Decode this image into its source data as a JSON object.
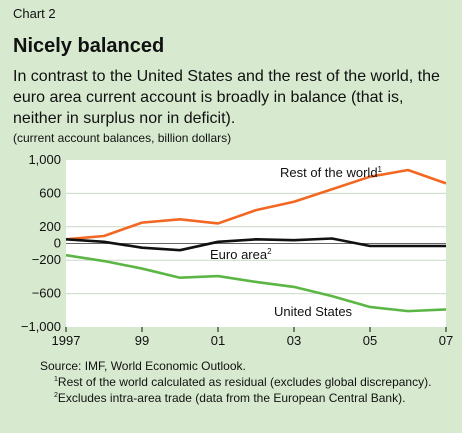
{
  "header": {
    "chart_number": "Chart 2",
    "title": "Nicely balanced",
    "description": "In contrast to the United States and the rest of the world, the euro area current account is broadly in balance (that is, neither in surplus nor in deficit).",
    "units": "(current account balances, billion dollars)"
  },
  "colors": {
    "background": "#d7ead0",
    "plot_background": "#ffffff",
    "rest_of_world": "#f26722",
    "euro_area": "#111111",
    "united_states": "#5cb646"
  },
  "chart_data": {
    "type": "line",
    "x": [
      1997,
      1998,
      1999,
      2000,
      2001,
      2002,
      2003,
      2004,
      2005,
      2006,
      2007
    ],
    "x_tick_labels": [
      "1997",
      "99",
      "01",
      "03",
      "05",
      "07"
    ],
    "y_tick_labels": [
      "1,000",
      "600",
      "200",
      "0",
      "−200",
      "−600",
      "−1,000"
    ],
    "ylim": [
      -1000,
      1000
    ],
    "series": [
      {
        "name": "Rest of the world",
        "name_sup": "1",
        "values": [
          50,
          90,
          250,
          290,
          240,
          400,
          500,
          650,
          800,
          880,
          720
        ]
      },
      {
        "name": "Euro area",
        "name_sup": "2",
        "values": [
          50,
          20,
          -50,
          -80,
          20,
          50,
          40,
          60,
          -30,
          -30,
          -30
        ]
      },
      {
        "name": "United States",
        "name_sup": "",
        "values": [
          -140,
          -210,
          -300,
          -410,
          -390,
          -460,
          -520,
          -630,
          -760,
          -810,
          -790
        ]
      }
    ]
  },
  "footer": {
    "source": "Source: IMF, World Economic Outlook.",
    "note1_marker": "1",
    "note1_text": "Rest of the world calculated as residual (excludes global discrepancy).",
    "note2_marker": "2",
    "note2_text": "Excludes intra-area trade (data from the European Central Bank)."
  }
}
